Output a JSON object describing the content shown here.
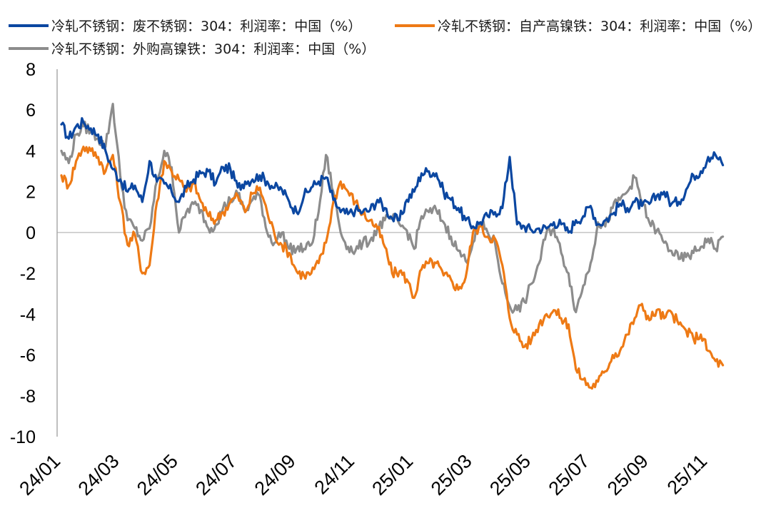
{
  "chart_data": {
    "type": "line",
    "title": "",
    "xlabel": "",
    "ylabel": "",
    "ylim": [
      -10,
      8
    ],
    "yticks": [
      8,
      6,
      4,
      2,
      0,
      -2,
      -4,
      -6,
      -8,
      -10
    ],
    "xticks": [
      "24/01",
      "24/03",
      "24/05",
      "24/07",
      "24/09",
      "24/11",
      "25/01",
      "25/03",
      "25/05",
      "25/07",
      "25/09",
      "25/11"
    ],
    "legend_position": "top",
    "grid": false,
    "series": [
      {
        "name": "冷轧不锈钢：废不锈钢：304：利润率：中国（%）",
        "color": "#0b47a1",
        "points": [
          [
            "24/01",
            5.3
          ],
          [
            "24/01.25",
            4.6
          ],
          [
            "24/01.5",
            5.2
          ],
          [
            "24/01.75",
            5.4
          ],
          [
            "24/02",
            5.1
          ],
          [
            "24/02.25",
            4.8
          ],
          [
            "24/02.5",
            4.0
          ],
          [
            "24/02.75",
            3.1
          ],
          [
            "24/03",
            2.6
          ],
          [
            "24/03.25",
            2.0
          ],
          [
            "24/03.5",
            2.3
          ],
          [
            "24/03.75",
            1.5
          ],
          [
            "24/04",
            3.5
          ],
          [
            "24/04.25",
            2.5
          ],
          [
            "24/04.5",
            2.4
          ],
          [
            "24/04.75",
            2.0
          ],
          [
            "24/05",
            1.5
          ],
          [
            "24/05.25",
            2.2
          ],
          [
            "24/05.5",
            2.6
          ],
          [
            "24/05.75",
            2.9
          ],
          [
            "24/06",
            3.0
          ],
          [
            "24/06.25",
            2.4
          ],
          [
            "24/06.5",
            3.2
          ],
          [
            "24/06.75",
            3.1
          ],
          [
            "24/07",
            2.2
          ],
          [
            "24/07.25",
            2.5
          ],
          [
            "24/07.5",
            2.6
          ],
          [
            "24/07.75",
            2.8
          ],
          [
            "24/08",
            2.5
          ],
          [
            "24/08.25",
            2.2
          ],
          [
            "24/08.5",
            2.1
          ],
          [
            "24/08.75",
            1.5
          ],
          [
            "24/09",
            1.0
          ],
          [
            "24/09.25",
            1.8
          ],
          [
            "24/09.5",
            2.2
          ],
          [
            "24/09.75",
            2.5
          ],
          [
            "24/10",
            2.7
          ],
          [
            "24/10.25",
            1.6
          ],
          [
            "24/10.5",
            1.0
          ],
          [
            "24/10.75",
            0.9
          ],
          [
            "24/11",
            1.1
          ],
          [
            "24/11.25",
            1.0
          ],
          [
            "24/11.5",
            1.1
          ],
          [
            "24/11.75",
            1.6
          ],
          [
            "24/12",
            1.2
          ],
          [
            "24/12.25",
            0.7
          ],
          [
            "24/12.5",
            0.6
          ],
          [
            "24/12.75",
            1.6
          ],
          [
            "25/01",
            2.0
          ],
          [
            "25/01.25",
            2.9
          ],
          [
            "25/01.5",
            3.0
          ],
          [
            "25/01.75",
            2.9
          ],
          [
            "25/02",
            2.0
          ],
          [
            "25/02.25",
            1.6
          ],
          [
            "25/02.5",
            1.2
          ],
          [
            "25/02.75",
            0.6
          ],
          [
            "25/03",
            0.3
          ],
          [
            "25/03.25",
            0.5
          ],
          [
            "25/03.5",
            0.8
          ],
          [
            "25/03.75",
            1.0
          ],
          [
            "25/04",
            1.2
          ],
          [
            "25/04.25",
            3.7
          ],
          [
            "25/04.5",
            0.4
          ],
          [
            "25/04.75",
            0.3
          ],
          [
            "25/05",
            0.1
          ],
          [
            "25/05.25",
            0.2
          ],
          [
            "25/05.5",
            0.2
          ],
          [
            "25/05.75",
            0.5
          ],
          [
            "25/06",
            0.4
          ],
          [
            "25/06.25",
            0.0
          ],
          [
            "25/06.5",
            0.6
          ],
          [
            "25/06.75",
            0.8
          ],
          [
            "25/07",
            1.3
          ],
          [
            "25/07.25",
            0.4
          ],
          [
            "25/07.5",
            0.6
          ],
          [
            "25/07.75",
            0.9
          ],
          [
            "25/08",
            1.4
          ],
          [
            "25/08.25",
            1.2
          ],
          [
            "25/08.5",
            1.5
          ],
          [
            "25/08.75",
            1.3
          ],
          [
            "25/09",
            1.4
          ],
          [
            "25/09.25",
            1.8
          ],
          [
            "25/09.5",
            2.0
          ],
          [
            "25/09.75",
            1.4
          ],
          [
            "25/10",
            1.5
          ],
          [
            "25/10.25",
            2.1
          ],
          [
            "25/10.5",
            2.8
          ],
          [
            "25/10.75",
            3.0
          ],
          [
            "25/11",
            3.7
          ],
          [
            "25/11.25",
            3.8
          ],
          [
            "25/11.5",
            3.3
          ]
        ]
      },
      {
        "name": "冷轧不锈钢：自产高镍铁：304：利润率：中国（%）",
        "color": "#ee7a15",
        "points": [
          [
            "24/01",
            2.8
          ],
          [
            "24/01.25",
            2.3
          ],
          [
            "24/01.5",
            3.5
          ],
          [
            "24/01.75",
            4.2
          ],
          [
            "24/02",
            4.0
          ],
          [
            "24/02.25",
            3.7
          ],
          [
            "24/02.5",
            3.0
          ],
          [
            "24/02.75",
            3.8
          ],
          [
            "24/03",
            1.5
          ],
          [
            "24/03.25",
            -0.6
          ],
          [
            "24/03.5",
            -0.1
          ],
          [
            "24/03.75",
            -2.0
          ],
          [
            "24/04",
            -1.6
          ],
          [
            "24/04.25",
            1.5
          ],
          [
            "24/04.5",
            3.5
          ],
          [
            "24/04.75",
            3.0
          ],
          [
            "24/05",
            2.6
          ],
          [
            "24/05.25",
            2.0
          ],
          [
            "24/05.5",
            2.4
          ],
          [
            "24/05.75",
            1.5
          ],
          [
            "24/06",
            0.8
          ],
          [
            "24/06.25",
            0.6
          ],
          [
            "24/06.5",
            1.0
          ],
          [
            "24/06.75",
            1.5
          ],
          [
            "24/07",
            1.8
          ],
          [
            "24/07.25",
            1.0
          ],
          [
            "24/07.5",
            1.9
          ],
          [
            "24/07.75",
            2.2
          ],
          [
            "24/08",
            1.0
          ],
          [
            "24/08.25",
            -0.1
          ],
          [
            "24/08.5",
            -0.6
          ],
          [
            "24/08.75",
            -1.0
          ],
          [
            "24/09",
            -1.9
          ],
          [
            "24/09.25",
            -2.1
          ],
          [
            "24/09.5",
            -2.0
          ],
          [
            "24/09.75",
            -1.5
          ],
          [
            "24/10",
            -0.5
          ],
          [
            "24/10.25",
            1.5
          ],
          [
            "24/10.5",
            2.5
          ],
          [
            "24/10.75",
            2.0
          ],
          [
            "24/11",
            1.5
          ],
          [
            "24/11.25",
            0.9
          ],
          [
            "24/11.5",
            0.6
          ],
          [
            "24/11.75",
            0.2
          ],
          [
            "24/12",
            -0.7
          ],
          [
            "24/12.25",
            -2.0
          ],
          [
            "24/12.5",
            -1.9
          ],
          [
            "24/12.75",
            -2.3
          ],
          [
            "25/01",
            -3.2
          ],
          [
            "25/01.25",
            -1.8
          ],
          [
            "25/01.5",
            -1.5
          ],
          [
            "25/01.75",
            -1.5
          ],
          [
            "25/02",
            -2.1
          ],
          [
            "25/02.25",
            -2.3
          ],
          [
            "25/02.5",
            -2.8
          ],
          [
            "25/02.75",
            -2.2
          ],
          [
            "25/03",
            0.0
          ],
          [
            "25/03.25",
            0.3
          ],
          [
            "25/03.5",
            -0.2
          ],
          [
            "25/03.75",
            -0.3
          ],
          [
            "25/04",
            -1.6
          ],
          [
            "25/04.25",
            -4.2
          ],
          [
            "25/04.5",
            -5.0
          ],
          [
            "25/04.75",
            -5.6
          ],
          [
            "25/05",
            -5.2
          ],
          [
            "25/05.25",
            -4.5
          ],
          [
            "25/05.5",
            -4.0
          ],
          [
            "25/05.75",
            -3.8
          ],
          [
            "25/06",
            -4.2
          ],
          [
            "25/06.25",
            -4.5
          ],
          [
            "25/06.5",
            -6.7
          ],
          [
            "25/06.75",
            -7.2
          ],
          [
            "25/07",
            -7.6
          ],
          [
            "25/07.25",
            -7.3
          ],
          [
            "25/07.5",
            -6.8
          ],
          [
            "25/07.75",
            -6.0
          ],
          [
            "25/08",
            -5.8
          ],
          [
            "25/08.25",
            -5.0
          ],
          [
            "25/08.5",
            -4.2
          ],
          [
            "25/08.75",
            -3.5
          ],
          [
            "25/09",
            -4.3
          ],
          [
            "25/09.25",
            -3.8
          ],
          [
            "25/09.5",
            -4.2
          ],
          [
            "25/09.75",
            -3.9
          ],
          [
            "25/10",
            -4.5
          ],
          [
            "25/10.25",
            -4.8
          ],
          [
            "25/10.5",
            -5.2
          ],
          [
            "25/10.75",
            -5.0
          ],
          [
            "25/11",
            -5.8
          ],
          [
            "25/11.25",
            -6.3
          ],
          [
            "25/11.5",
            -6.5
          ]
        ]
      },
      {
        "name": "冷轧不锈钢：外购高镍铁：304：利润率：中国（%）",
        "color": "#8c8c8c",
        "points": [
          [
            "24/01",
            4.0
          ],
          [
            "24/01.25",
            3.4
          ],
          [
            "24/01.5",
            4.8
          ],
          [
            "24/01.75",
            5.2
          ],
          [
            "24/02",
            5.0
          ],
          [
            "24/02.25",
            4.6
          ],
          [
            "24/02.5",
            4.2
          ],
          [
            "24/02.75",
            6.3
          ],
          [
            "24/03",
            2.8
          ],
          [
            "24/03.25",
            0.6
          ],
          [
            "24/03.5",
            0.2
          ],
          [
            "24/03.75",
            -0.4
          ],
          [
            "24/04",
            0.2
          ],
          [
            "24/04.25",
            2.5
          ],
          [
            "24/04.5",
            4.0
          ],
          [
            "24/04.75",
            3.2
          ],
          [
            "24/05",
            0.0
          ],
          [
            "24/05.25",
            1.0
          ],
          [
            "24/05.5",
            1.4
          ],
          [
            "24/05.75",
            1.1
          ],
          [
            "24/06",
            0.2
          ],
          [
            "24/06.25",
            0.4
          ],
          [
            "24/06.5",
            1.2
          ],
          [
            "24/06.75",
            1.6
          ],
          [
            "24/07",
            1.9
          ],
          [
            "24/07.25",
            1.0
          ],
          [
            "24/07.5",
            1.6
          ],
          [
            "24/07.75",
            1.8
          ],
          [
            "24/08",
            0.0
          ],
          [
            "24/08.25",
            -0.5
          ],
          [
            "24/08.5",
            0.0
          ],
          [
            "24/08.75",
            -0.8
          ],
          [
            "24/09",
            -0.8
          ],
          [
            "24/09.25",
            -0.8
          ],
          [
            "24/09.5",
            -0.6
          ],
          [
            "24/09.75",
            1.0
          ],
          [
            "24/10",
            3.8
          ],
          [
            "24/10.25",
            2.0
          ],
          [
            "24/10.5",
            0.0
          ],
          [
            "24/10.75",
            -0.7
          ],
          [
            "24/11",
            -0.9
          ],
          [
            "24/11.25",
            -0.5
          ],
          [
            "24/11.5",
            -0.4
          ],
          [
            "24/11.75",
            0.2
          ],
          [
            "24/12",
            0.6
          ],
          [
            "24/12.25",
            0.7
          ],
          [
            "24/12.5",
            0.4
          ],
          [
            "24/12.75",
            0.1
          ],
          [
            "25/01",
            -0.8
          ],
          [
            "25/01.25",
            0.8
          ],
          [
            "25/01.5",
            1.0
          ],
          [
            "25/01.75",
            1.1
          ],
          [
            "25/02",
            0.5
          ],
          [
            "25/02.25",
            -0.2
          ],
          [
            "25/02.5",
            -0.9
          ],
          [
            "25/02.75",
            -1.4
          ],
          [
            "25/03",
            -0.5
          ],
          [
            "25/03.25",
            0.5
          ],
          [
            "25/03.5",
            0.0
          ],
          [
            "25/03.75",
            -0.5
          ],
          [
            "25/04",
            -2.5
          ],
          [
            "25/04.25",
            -3.6
          ],
          [
            "25/04.5",
            -3.8
          ],
          [
            "25/04.75",
            -3.4
          ],
          [
            "25/05",
            -2.5
          ],
          [
            "25/05.25",
            -1.5
          ],
          [
            "25/05.5",
            0.0
          ],
          [
            "25/05.75",
            0.2
          ],
          [
            "25/06",
            -1.0
          ],
          [
            "25/06.25",
            -2.0
          ],
          [
            "25/06.5",
            -3.9
          ],
          [
            "25/06.75",
            -2.6
          ],
          [
            "25/07",
            -1.5
          ],
          [
            "25/07.25",
            0.5
          ],
          [
            "25/07.5",
            0.3
          ],
          [
            "25/07.75",
            1.2
          ],
          [
            "25/08",
            1.6
          ],
          [
            "25/08.25",
            2.0
          ],
          [
            "25/08.5",
            2.7
          ],
          [
            "25/08.75",
            1.5
          ],
          [
            "25/09",
            0.5
          ],
          [
            "25/09.25",
            0.1
          ],
          [
            "25/09.5",
            -0.5
          ],
          [
            "25/09.75",
            -0.9
          ],
          [
            "25/10",
            -1.3
          ],
          [
            "25/10.25",
            -1.2
          ],
          [
            "25/10.5",
            -1.0
          ],
          [
            "25/10.75",
            -0.7
          ],
          [
            "25/11",
            -0.3
          ],
          [
            "25/11.25",
            -0.8
          ],
          [
            "25/11.5",
            -0.2
          ]
        ]
      }
    ]
  }
}
